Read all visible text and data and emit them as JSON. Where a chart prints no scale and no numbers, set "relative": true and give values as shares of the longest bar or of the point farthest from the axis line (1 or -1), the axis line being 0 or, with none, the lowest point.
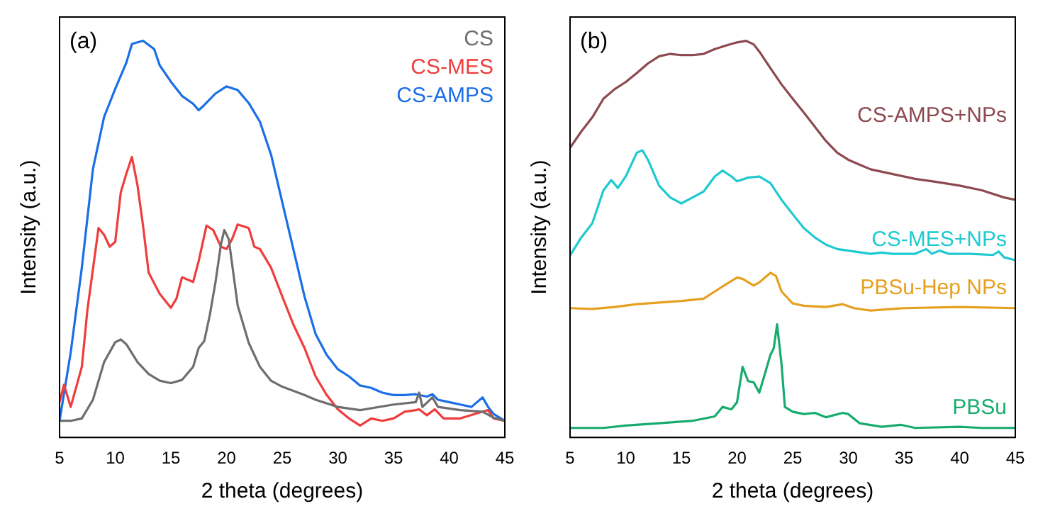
{
  "chart_data": [
    {
      "type": "line",
      "title": "(a)",
      "xlabel": "2 theta (degrees)",
      "ylabel": "Intensity (a.u.)",
      "relative": true,
      "xlim": [
        5,
        45
      ],
      "xticks": [
        5,
        10,
        15,
        20,
        25,
        30,
        35,
        40,
        45
      ],
      "legend": "top right",
      "marker": "none",
      "line_style": "solid",
      "series": [
        {
          "name": "CS",
          "color": "#6e6e6e",
          "x": [
            5,
            6,
            7,
            8,
            9,
            10,
            10.5,
            11,
            12,
            13,
            14,
            15,
            16,
            17,
            17.5,
            18,
            18.5,
            19,
            19.5,
            19.8,
            20.2,
            21,
            22,
            23,
            24,
            25,
            27,
            28,
            30,
            32,
            35,
            37,
            37.3,
            37.6,
            38.5,
            39,
            41,
            43,
            44,
            45
          ],
          "values": [
            0.042,
            0.042,
            0.048,
            0.095,
            0.19,
            0.24,
            0.247,
            0.235,
            0.19,
            0.16,
            0.143,
            0.137,
            0.145,
            0.178,
            0.226,
            0.243,
            0.309,
            0.39,
            0.487,
            0.523,
            0.5,
            0.333,
            0.238,
            0.178,
            0.143,
            0.128,
            0.107,
            0.095,
            0.077,
            0.069,
            0.083,
            0.089,
            0.113,
            0.077,
            0.101,
            0.077,
            0.069,
            0.065,
            0.05,
            0.042
          ]
        },
        {
          "name": "CS-MES",
          "color": "#f03c3c",
          "x": [
            5,
            5.4,
            6,
            7,
            7.5,
            8.5,
            9,
            9.5,
            10,
            10.5,
            11,
            11.5,
            12,
            12.5,
            13,
            14,
            15,
            15.5,
            16,
            16.5,
            17,
            17.5,
            18.2,
            18.8,
            19.5,
            20,
            20.5,
            21,
            22,
            22.5,
            23,
            24,
            25,
            26,
            27,
            28,
            29,
            30,
            31,
            32,
            33,
            34,
            35,
            36,
            37,
            37.3,
            38,
            38.7,
            39.5,
            41,
            43,
            43.5,
            44,
            45
          ],
          "values": [
            0.089,
            0.133,
            0.077,
            0.178,
            0.321,
            0.528,
            0.511,
            0.481,
            0.493,
            0.618,
            0.665,
            0.707,
            0.636,
            0.534,
            0.416,
            0.362,
            0.327,
            0.35,
            0.404,
            0.398,
            0.392,
            0.445,
            0.534,
            0.523,
            0.481,
            0.475,
            0.5,
            0.537,
            0.528,
            0.481,
            0.475,
            0.428,
            0.356,
            0.285,
            0.226,
            0.154,
            0.107,
            0.071,
            0.048,
            0.03,
            0.048,
            0.042,
            0.048,
            0.065,
            0.069,
            0.071,
            0.056,
            0.071,
            0.048,
            0.048,
            0.065,
            0.069,
            0.048,
            0.042
          ]
        },
        {
          "name": "CS-AMPS",
          "color": "#1a6ee6",
          "x": [
            5,
            6,
            7,
            8,
            9,
            10,
            11,
            11.5,
            12.5,
            13.5,
            14,
            15,
            16,
            17,
            17.5,
            18,
            19,
            20,
            21,
            22,
            23,
            24,
            25,
            26,
            27,
            28,
            29,
            30,
            31,
            32,
            33,
            34,
            35,
            36,
            37,
            38,
            38.5,
            39,
            40,
            41,
            42,
            43,
            43.5,
            44,
            45
          ],
          "values": [
            0.042,
            0.214,
            0.428,
            0.677,
            0.808,
            0.879,
            0.945,
            0.992,
            1,
            0.979,
            0.938,
            0.897,
            0.861,
            0.841,
            0.825,
            0.838,
            0.867,
            0.885,
            0.876,
            0.843,
            0.796,
            0.713,
            0.594,
            0.475,
            0.356,
            0.261,
            0.208,
            0.172,
            0.154,
            0.131,
            0.125,
            0.113,
            0.107,
            0.107,
            0.109,
            0.103,
            0.109,
            0.095,
            0.089,
            0.083,
            0.077,
            0.101,
            0.077,
            0.059,
            0.042
          ]
        }
      ]
    },
    {
      "type": "line",
      "title": "(b)",
      "xlabel": "2 theta (degrees)",
      "ylabel": "Intensity (a.u.)",
      "relative": true,
      "xlim": [
        5,
        45
      ],
      "xticks": [
        5,
        10,
        15,
        20,
        25,
        30,
        35,
        40,
        45
      ],
      "marker": "none",
      "line_style": "solid",
      "series": [
        {
          "name": "CS-AMPS+NPs",
          "color": "#8c4a50",
          "x": [
            5,
            6,
            7,
            8,
            9,
            10,
            11,
            12,
            13,
            14,
            15,
            16,
            17,
            18,
            19,
            20,
            20.8,
            21.5,
            22,
            23,
            24,
            25,
            26,
            27,
            28,
            29,
            30,
            31,
            32,
            34,
            36,
            38,
            40,
            42,
            44,
            45
          ],
          "values": [
            0.73,
            0.771,
            0.807,
            0.854,
            0.878,
            0.896,
            0.919,
            0.943,
            0.961,
            0.967,
            0.964,
            0.964,
            0.967,
            0.979,
            0.988,
            0.996,
            1,
            0.991,
            0.973,
            0.931,
            0.89,
            0.854,
            0.819,
            0.783,
            0.747,
            0.718,
            0.7,
            0.688,
            0.676,
            0.664,
            0.652,
            0.644,
            0.635,
            0.623,
            0.605,
            0.599
          ]
        },
        {
          "name": "CS-MES+NPs",
          "color": "#1ecad0",
          "x": [
            5,
            6,
            7,
            8,
            8.7,
            9.3,
            10,
            11,
            11.5,
            12,
            13,
            14,
            15,
            16,
            17,
            18,
            18.7,
            19.5,
            20,
            21,
            22,
            23,
            24,
            25,
            26,
            27,
            28,
            29,
            30,
            32,
            33,
            34,
            36,
            37,
            37.5,
            38.2,
            39,
            41,
            43,
            43.5,
            44,
            45
          ],
          "values": [
            0.459,
            0.504,
            0.54,
            0.623,
            0.649,
            0.629,
            0.658,
            0.718,
            0.724,
            0.7,
            0.635,
            0.605,
            0.59,
            0.605,
            0.62,
            0.658,
            0.673,
            0.658,
            0.646,
            0.655,
            0.658,
            0.641,
            0.599,
            0.563,
            0.528,
            0.504,
            0.486,
            0.475,
            0.471,
            0.463,
            0.466,
            0.463,
            0.463,
            0.475,
            0.463,
            0.471,
            0.463,
            0.463,
            0.46,
            0.469,
            0.454,
            0.447
          ]
        },
        {
          "name": "PBSu-Hep NPs",
          "color": "#e6a020",
          "x": [
            5,
            7,
            9,
            11,
            13,
            15,
            17,
            18,
            19,
            20,
            20.5,
            21.5,
            22,
            23,
            23.5,
            24,
            25,
            26,
            28,
            29.5,
            30.5,
            32,
            35,
            40,
            45
          ],
          "values": [
            0.326,
            0.324,
            0.329,
            0.336,
            0.34,
            0.344,
            0.35,
            0.368,
            0.386,
            0.403,
            0.4,
            0.383,
            0.391,
            0.415,
            0.407,
            0.368,
            0.338,
            0.332,
            0.329,
            0.336,
            0.326,
            0.32,
            0.326,
            0.329,
            0.326
          ]
        },
        {
          "name": "PBSu",
          "color": "#18ab6f",
          "x": [
            5,
            8,
            10,
            13,
            16,
            18,
            18.7,
            19.5,
            20,
            20.5,
            21,
            21.5,
            22,
            22.5,
            23,
            23.3,
            23.6,
            24,
            24.3,
            25,
            26,
            27,
            28,
            29.5,
            30,
            31,
            33,
            34.7,
            36,
            40,
            42,
            45
          ],
          "values": [
            0.024,
            0.024,
            0.03,
            0.036,
            0.042,
            0.053,
            0.077,
            0.071,
            0.089,
            0.178,
            0.142,
            0.139,
            0.113,
            0.16,
            0.208,
            0.225,
            0.285,
            0.184,
            0.077,
            0.065,
            0.059,
            0.062,
            0.051,
            0.062,
            0.059,
            0.036,
            0.027,
            0.032,
            0.024,
            0.027,
            0.024,
            0.024
          ]
        }
      ]
    }
  ]
}
